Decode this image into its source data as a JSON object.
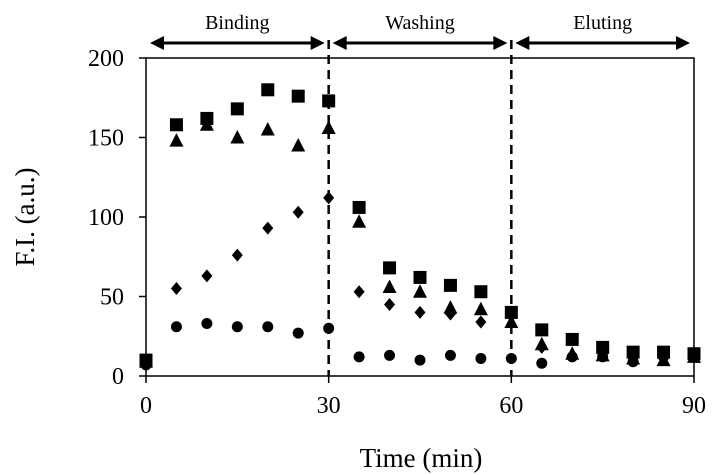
{
  "chart_data": {
    "type": "scatter",
    "title": "",
    "xlabel": "Time (min)",
    "ylabel": "F.I. (a.u.)",
    "xlim": [
      0,
      90
    ],
    "ylim": [
      0,
      200
    ],
    "x_ticks": [
      "0",
      "30",
      "60",
      "90"
    ],
    "y_ticks": [
      "0",
      "50",
      "100",
      "150",
      "200"
    ],
    "grid": false,
    "legend": "none",
    "phase_dividers": [
      30,
      60
    ],
    "phases": [
      {
        "label": "Binding",
        "start": 0,
        "end": 30
      },
      {
        "label": "Washing",
        "start": 30,
        "end": 60
      },
      {
        "label": "Eluting",
        "start": 60,
        "end": 90
      }
    ],
    "series": [
      {
        "marker": "square",
        "x": [
          0,
          5,
          10,
          15,
          20,
          25,
          30,
          35,
          40,
          45,
          50,
          55,
          60,
          65,
          70,
          75,
          80,
          85,
          90
        ],
        "y": [
          10,
          158,
          162,
          168,
          180,
          176,
          173,
          106,
          68,
          62,
          57,
          53,
          40,
          29,
          23,
          18,
          15,
          15,
          14
        ]
      },
      {
        "marker": "triangle",
        "x": [
          0,
          5,
          10,
          15,
          20,
          25,
          30,
          35,
          40,
          45,
          50,
          55,
          60,
          65,
          70,
          75,
          80,
          85,
          90
        ],
        "y": [
          9,
          148,
          158,
          150,
          155,
          145,
          156,
          97,
          56,
          53,
          43,
          42,
          34,
          20,
          14,
          13,
          11,
          10,
          12
        ]
      },
      {
        "marker": "diamond",
        "x": [
          0,
          5,
          10,
          15,
          20,
          25,
          30,
          35,
          40,
          45,
          50,
          55,
          60,
          65,
          70,
          75,
          80,
          85,
          90
        ],
        "y": [
          8,
          55,
          63,
          76,
          93,
          103,
          112,
          53,
          45,
          40,
          39,
          34,
          38,
          18,
          13,
          14,
          12,
          13,
          12
        ]
      },
      {
        "marker": "circle",
        "x": [
          0,
          5,
          10,
          15,
          20,
          25,
          30,
          35,
          40,
          45,
          50,
          55,
          60,
          65,
          70,
          75,
          80,
          85,
          90
        ],
        "y": [
          7,
          31,
          33,
          31,
          31,
          27,
          30,
          12,
          13,
          10,
          13,
          11,
          11,
          8,
          12,
          12,
          9,
          12,
          12
        ]
      }
    ]
  }
}
